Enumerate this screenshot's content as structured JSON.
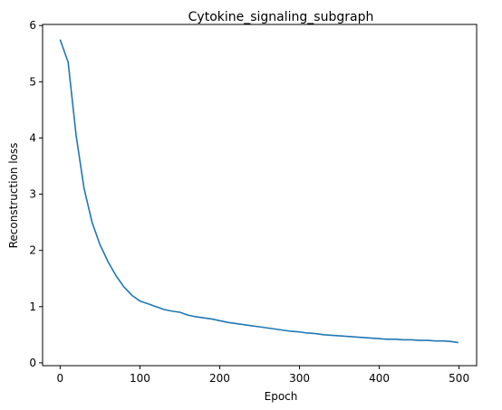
{
  "chart_data": {
    "type": "line",
    "title": "Cytokine_signaling_subgraph",
    "xlabel": "Epoch",
    "ylabel": "Reconstruction loss",
    "xlim": [
      -22,
      522
    ],
    "ylim": [
      -0.05,
      6.02
    ],
    "xticks": [
      0,
      100,
      200,
      300,
      400,
      500
    ],
    "yticks": [
      0,
      1,
      2,
      3,
      4,
      5,
      6
    ],
    "grid": false,
    "legend": null,
    "line_color": "#1f77b4",
    "series": [
      {
        "x": [
          0,
          10,
          20,
          30,
          40,
          50,
          60,
          70,
          80,
          90,
          100,
          110,
          120,
          130,
          140,
          150,
          160,
          170,
          180,
          190,
          200,
          210,
          220,
          230,
          240,
          250,
          260,
          270,
          280,
          290,
          300,
          310,
          320,
          330,
          340,
          350,
          360,
          370,
          380,
          390,
          400,
          410,
          420,
          430,
          440,
          450,
          460,
          470,
          480,
          490,
          499
        ],
        "values": [
          5.75,
          5.35,
          4.05,
          3.1,
          2.5,
          2.1,
          1.8,
          1.55,
          1.35,
          1.2,
          1.1,
          1.05,
          1.0,
          0.95,
          0.92,
          0.9,
          0.85,
          0.82,
          0.8,
          0.78,
          0.75,
          0.72,
          0.7,
          0.68,
          0.66,
          0.64,
          0.62,
          0.6,
          0.58,
          0.56,
          0.55,
          0.53,
          0.52,
          0.5,
          0.49,
          0.48,
          0.47,
          0.46,
          0.45,
          0.44,
          0.43,
          0.42,
          0.42,
          0.41,
          0.41,
          0.4,
          0.4,
          0.39,
          0.39,
          0.38,
          0.36
        ]
      }
    ]
  }
}
